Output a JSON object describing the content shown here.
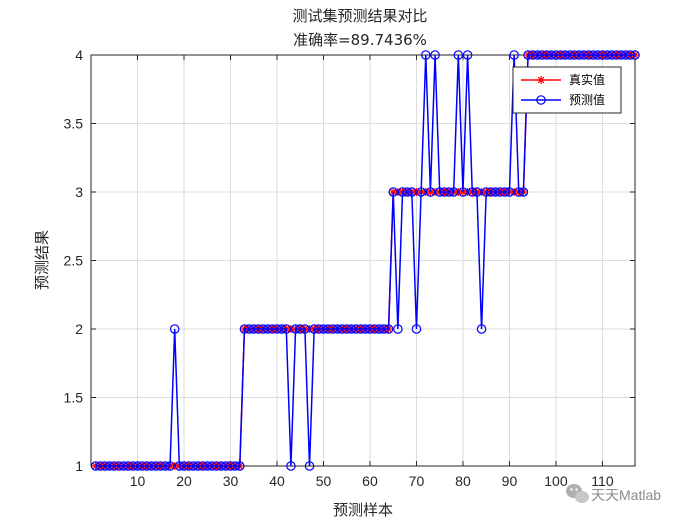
{
  "chart_data": {
    "type": "line",
    "title": "测试集预测结果对比",
    "subtitle": "准确率=89.7436%",
    "xlabel": "预测样本",
    "ylabel": "预测结果",
    "xlim": [
      0,
      117
    ],
    "ylim": [
      1,
      4
    ],
    "xticks": [
      "10",
      "20",
      "30",
      "40",
      "50",
      "60",
      "70",
      "80",
      "90",
      "100",
      "110"
    ],
    "yticks": [
      "1",
      "1.5",
      "2",
      "2.5",
      "3",
      "3.5",
      "4"
    ],
    "grid": true,
    "legend_position": "top-right",
    "series": [
      {
        "name": "真实值",
        "color": "#ff0000",
        "marker": "asterisk",
        "values": [
          1,
          1,
          1,
          1,
          1,
          1,
          1,
          1,
          1,
          1,
          1,
          1,
          1,
          1,
          1,
          1,
          1,
          1,
          1,
          1,
          1,
          1,
          1,
          1,
          1,
          1,
          1,
          1,
          1,
          1,
          1,
          1,
          2,
          2,
          2,
          2,
          2,
          2,
          2,
          2,
          2,
          2,
          2,
          2,
          2,
          2,
          2,
          2,
          2,
          2,
          2,
          2,
          2,
          2,
          2,
          2,
          2,
          2,
          2,
          2,
          2,
          2,
          2,
          2,
          3,
          3,
          3,
          3,
          3,
          3,
          3,
          3,
          3,
          3,
          3,
          3,
          3,
          3,
          3,
          3,
          3,
          3,
          3,
          3,
          3,
          3,
          3,
          3,
          3,
          3,
          3,
          3,
          3,
          4,
          4,
          4,
          4,
          4,
          4,
          4,
          4,
          4,
          4,
          4,
          4,
          4,
          4,
          4,
          4,
          4,
          4,
          4,
          4,
          4,
          4,
          4,
          4
        ]
      },
      {
        "name": "预测值",
        "color": "#0000ff",
        "marker": "circle",
        "values": [
          1,
          1,
          1,
          1,
          1,
          1,
          1,
          1,
          1,
          1,
          1,
          1,
          1,
          1,
          1,
          1,
          1,
          2,
          1,
          1,
          1,
          1,
          1,
          1,
          1,
          1,
          1,
          1,
          1,
          1,
          1,
          1,
          2,
          2,
          2,
          2,
          2,
          2,
          2,
          2,
          2,
          2,
          1,
          2,
          2,
          2,
          1,
          2,
          2,
          2,
          2,
          2,
          2,
          2,
          2,
          2,
          2,
          2,
          2,
          2,
          2,
          2,
          2,
          2,
          3,
          2,
          3,
          3,
          3,
          2,
          3,
          4,
          3,
          4,
          3,
          3,
          3,
          3,
          4,
          3,
          4,
          3,
          3,
          2,
          3,
          3,
          3,
          3,
          3,
          3,
          4,
          3,
          3,
          4,
          4,
          4,
          4,
          4,
          4,
          4,
          4,
          4,
          4,
          4,
          4,
          4,
          4,
          4,
          4,
          4,
          4,
          4,
          4,
          4,
          4,
          4,
          4
        ]
      }
    ]
  },
  "watermark": "天天Matlab",
  "watermark_icon": "wechat-icon"
}
